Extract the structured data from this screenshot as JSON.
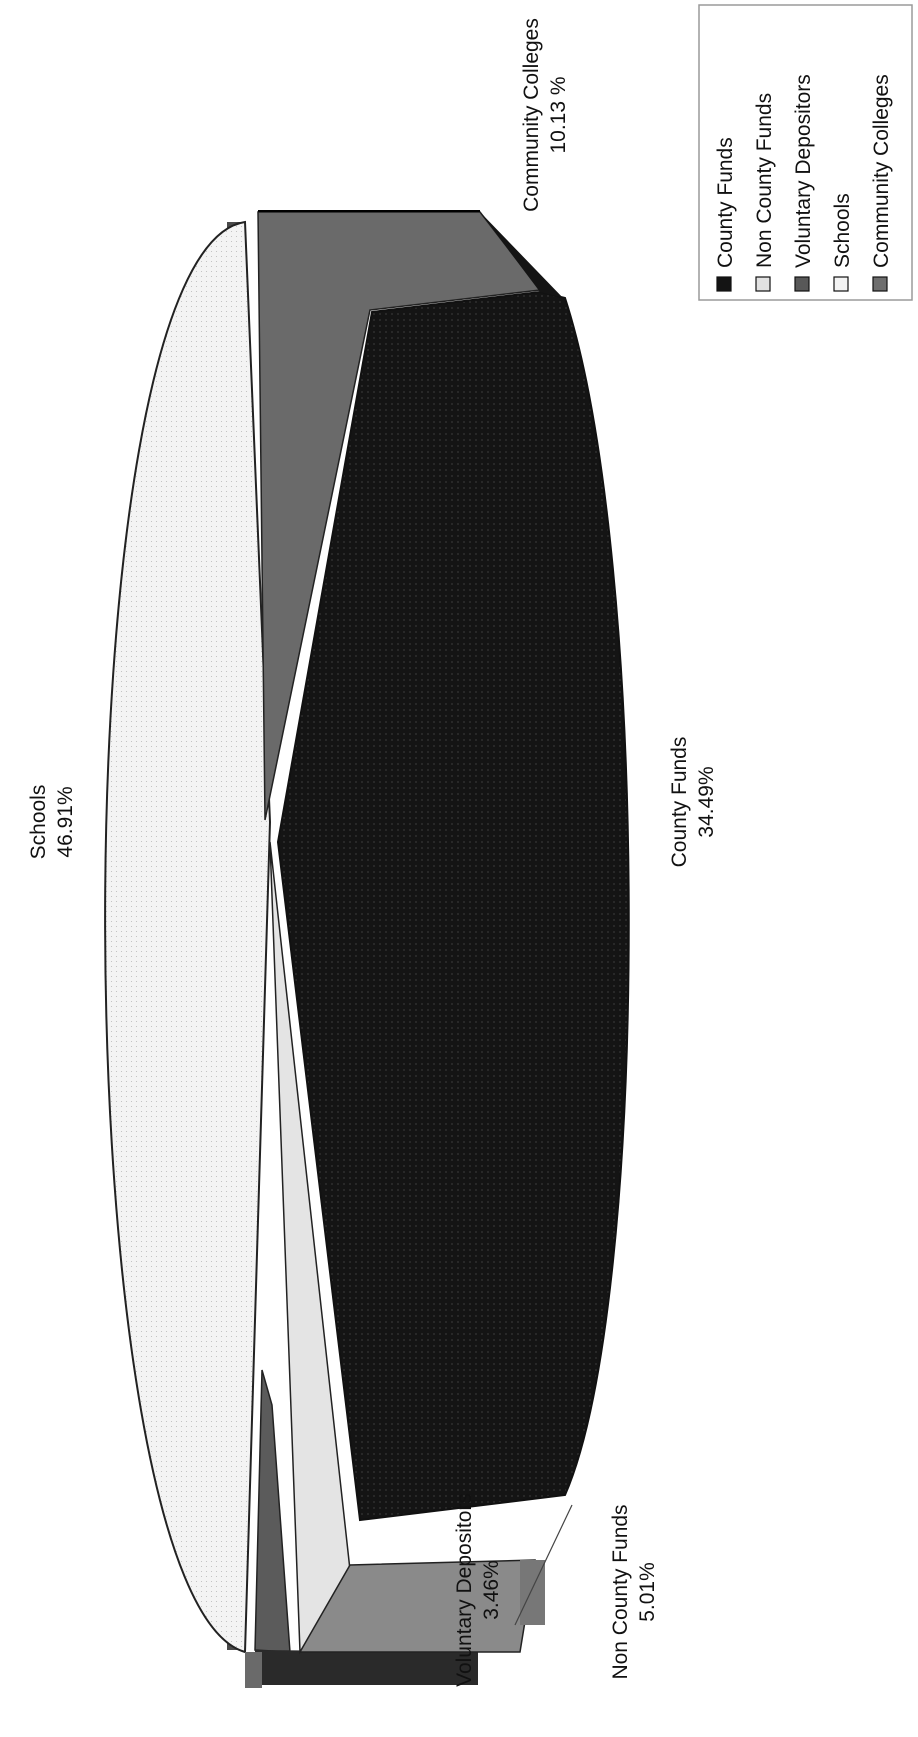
{
  "chart_data": {
    "type": "pie",
    "orientation": "rotated 90 degrees counter-clockwise, 3D exploded",
    "categories": [
      "County Funds",
      "Non County Funds",
      "Voluntary Depositors",
      "Schools",
      "Community Colleges"
    ],
    "values": [
      34.49,
      5.01,
      3.46,
      46.91,
      10.13
    ],
    "data_labels": [
      {
        "name": "County Funds",
        "value": "34.49%"
      },
      {
        "name": "Non County Funds",
        "value": "5.01%"
      },
      {
        "name": "Voluntary Depositors",
        "value": "3.46%"
      },
      {
        "name": "Schools",
        "value": "46.91%"
      },
      {
        "name": "Community Colleges",
        "value": "10.13 %"
      }
    ],
    "colors": [
      "#141414",
      "#e2e2e2",
      "#585858",
      "#f3f3f3",
      "#6e6e6e"
    ],
    "legend": {
      "placement": "top-right",
      "entries": [
        "County Funds",
        "Non County Funds",
        "Voluntary Depositors",
        "Schools",
        "Community Colleges"
      ]
    }
  }
}
